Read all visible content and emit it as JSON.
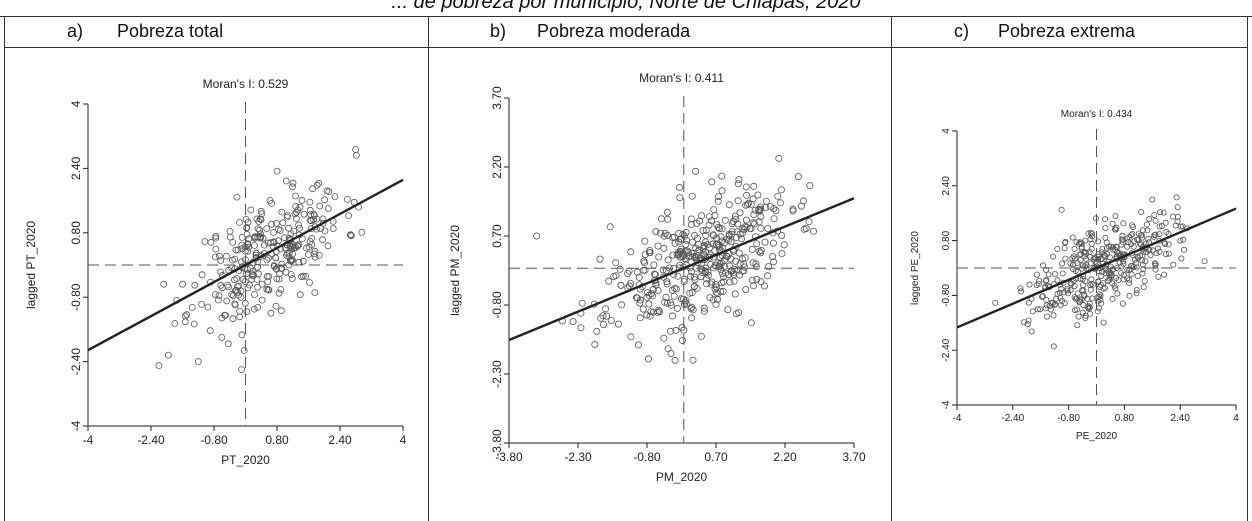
{
  "caption": "... de pobreza por municipio, Norte de Chiapas, 2020",
  "panels": [
    {
      "letter": "a)",
      "name": "Pobreza total"
    },
    {
      "letter": "b)",
      "name": "Pobreza moderada"
    },
    {
      "letter": "c)",
      "name": "Pobreza extrema"
    }
  ],
  "chart_data": [
    {
      "type": "scatter",
      "title": "Moran's I: 0.529",
      "xlabel": "PT_2020",
      "ylabel": "lagged PT_2020",
      "xlim": [
        -4,
        4
      ],
      "ylim": [
        -4,
        4
      ],
      "xticks": [
        "-4",
        "-2.40",
        "-0.80",
        "0.80",
        "2.40",
        "4"
      ],
      "yticks": [
        "-4",
        "-2.40",
        "-0.80",
        "0.80",
        "2.40",
        "4"
      ],
      "moran_i": 0.529,
      "regression": {
        "slope": 0.529,
        "intercept": 0
      },
      "reference_lines": {
        "x": 0,
        "y": 0
      },
      "cloud": {
        "center": [
          0.6,
          0.3
        ],
        "spread": [
          0.95,
          0.7
        ],
        "n": 300
      },
      "outliers": [
        [
          -0.1,
          -2.6
        ],
        [
          -2.2,
          -2.5
        ],
        [
          -1.2,
          -2.4
        ]
      ]
    },
    {
      "type": "scatter",
      "title": "Moran's I: 0.411",
      "xlabel": "PM_2020",
      "ylabel": "lagged PM_2020",
      "xlim": [
        -3.8,
        3.7
      ],
      "ylim": [
        -3.8,
        3.7
      ],
      "xticks": [
        "-3.80",
        "-2.30",
        "-0.80",
        "0.70",
        "2.20",
        "3.70"
      ],
      "yticks": [
        "-3.80",
        "-2.30",
        "-0.80",
        "0.70",
        "2.20",
        "3.70"
      ],
      "moran_i": 0.411,
      "regression": {
        "slope": 0.411,
        "intercept": 0
      },
      "reference_lines": {
        "x": 0,
        "y": 0
      },
      "cloud": {
        "center": [
          0.3,
          0.15
        ],
        "spread": [
          1.0,
          0.65
        ],
        "n": 420
      },
      "outliers": [
        [
          0.2,
          -2.0
        ],
        [
          -3.2,
          0.7
        ],
        [
          -1.6,
          0.9
        ]
      ]
    },
    {
      "type": "scatter",
      "title": "Moran's I: 0.434",
      "xlabel": "PE_2020",
      "ylabel": "lagged PE_2020",
      "xlim": [
        -4,
        4
      ],
      "ylim": [
        -4,
        4
      ],
      "xticks": [
        "-4",
        "-2.40",
        "-0.80",
        "0.80",
        "2.40",
        "4"
      ],
      "yticks": [
        "-4",
        "-2.40",
        "-0.80",
        "0.80",
        "2.40",
        "4"
      ],
      "moran_i": 0.434,
      "regression": {
        "slope": 0.434,
        "intercept": 0
      },
      "reference_lines": {
        "x": 0,
        "y": 0
      },
      "cloud": {
        "center": [
          0.2,
          0.1
        ],
        "spread": [
          1.0,
          0.6
        ],
        "n": 380
      },
      "outliers": [
        [
          3.1,
          0.2
        ],
        [
          -1.0,
          1.7
        ],
        [
          1.6,
          2.0
        ]
      ]
    }
  ]
}
